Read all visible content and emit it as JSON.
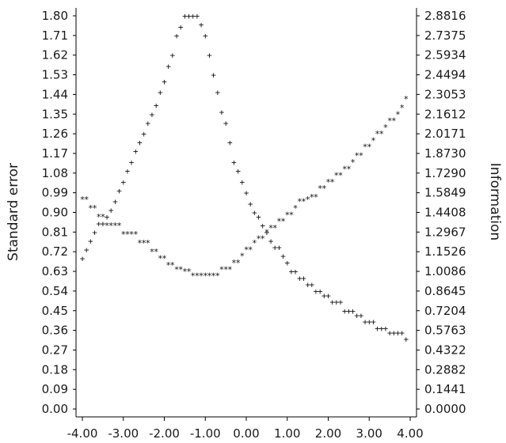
{
  "chart_data": {
    "type": "scatter",
    "xlabel": "",
    "ylabel": "Standard error",
    "y2label": "Information",
    "xlim": [
      -4,
      4
    ],
    "ylim": [
      0,
      1.8
    ],
    "y2lim": [
      0,
      2.8816
    ],
    "grid": false,
    "x_ticks": [
      "-4.00",
      "-3.00",
      "-2.00",
      "-1.00",
      "0.00",
      "1.00",
      "2.00",
      "3.00",
      "4.00"
    ],
    "y_ticks": [
      "0.00",
      "0.09",
      "0.18",
      "0.27",
      "0.36",
      "0.45",
      "0.54",
      "0.63",
      "0.72",
      "0.81",
      "0.90",
      "0.99",
      "1.08",
      "1.17",
      "1.26",
      "1.35",
      "1.44",
      "1.53",
      "1.62",
      "1.71",
      "1.80"
    ],
    "y2_ticks": [
      "0.0000",
      "0.1441",
      "0.2882",
      "0.4322",
      "0.5763",
      "0.7204",
      "0.8645",
      "1.0086",
      "1.1526",
      "1.2967",
      "1.4408",
      "1.5849",
      "1.7290",
      "1.8730",
      "2.0171",
      "2.1612",
      "2.3053",
      "2.4494",
      "2.5934",
      "2.7375",
      "2.8816"
    ],
    "series": [
      {
        "marker": "+",
        "axis": "left",
        "x": [
          -4.0,
          -3.9,
          -3.8,
          -3.7,
          -3.6,
          -3.5,
          -3.4,
          -3.3,
          -3.2,
          -3.1,
          -3.0,
          -2.9,
          -2.8,
          -2.7,
          -2.6,
          -2.5,
          -2.4,
          -2.3,
          -2.2,
          -2.1,
          -2.0,
          -1.9,
          -1.8,
          -1.7,
          -1.6,
          -1.5,
          -1.4,
          -1.3,
          -1.2,
          -1.1,
          -1.0,
          -0.9,
          -0.8,
          -0.7,
          -0.6,
          -0.5,
          -0.4,
          -0.3,
          -0.2,
          -0.1,
          0.0,
          0.1,
          0.2,
          0.3,
          0.4,
          0.5,
          0.6,
          0.7,
          0.8,
          0.9,
          1.0,
          1.1,
          1.2,
          1.3,
          1.4,
          1.5,
          1.6,
          1.7,
          1.8,
          1.9,
          2.0,
          2.1,
          2.2,
          2.3,
          2.4,
          2.5,
          2.6,
          2.7,
          2.8,
          2.9,
          3.0,
          3.1,
          3.2,
          3.3,
          3.4,
          3.5,
          3.6,
          3.7,
          3.8,
          3.9
        ],
        "y": [
          0.69,
          0.73,
          0.77,
          0.81,
          0.85,
          0.85,
          0.88,
          0.91,
          0.95,
          1.0,
          1.04,
          1.09,
          1.13,
          1.18,
          1.22,
          1.26,
          1.31,
          1.35,
          1.39,
          1.45,
          1.5,
          1.57,
          1.62,
          1.71,
          1.75,
          1.8,
          1.8,
          1.8,
          1.8,
          1.76,
          1.71,
          1.62,
          1.53,
          1.45,
          1.36,
          1.31,
          1.22,
          1.13,
          1.09,
          1.04,
          0.99,
          0.94,
          0.9,
          0.88,
          0.84,
          0.81,
          0.77,
          0.74,
          0.74,
          0.7,
          0.67,
          0.63,
          0.63,
          0.6,
          0.6,
          0.57,
          0.57,
          0.54,
          0.54,
          0.52,
          0.52,
          0.49,
          0.49,
          0.49,
          0.45,
          0.45,
          0.45,
          0.43,
          0.43,
          0.4,
          0.4,
          0.4,
          0.37,
          0.37,
          0.37,
          0.35,
          0.35,
          0.35,
          0.35,
          0.32
        ]
      },
      {
        "marker": "*",
        "axis": "left",
        "x": [
          -4.0,
          -3.9,
          -3.8,
          -3.7,
          -3.6,
          -3.5,
          -3.4,
          -3.3,
          -3.2,
          -3.1,
          -3.0,
          -2.9,
          -2.8,
          -2.7,
          -2.6,
          -2.5,
          -2.4,
          -2.3,
          -2.2,
          -2.1,
          -2.0,
          -1.9,
          -1.8,
          -1.7,
          -1.6,
          -1.5,
          -1.4,
          -1.3,
          -1.2,
          -1.1,
          -1.0,
          -0.9,
          -0.8,
          -0.7,
          -0.6,
          -0.5,
          -0.4,
          -0.3,
          -0.2,
          -0.1,
          0.0,
          0.1,
          0.2,
          0.3,
          0.4,
          0.5,
          0.6,
          0.7,
          0.8,
          0.9,
          1.0,
          1.1,
          1.2,
          1.3,
          1.4,
          1.5,
          1.6,
          1.7,
          1.8,
          1.9,
          2.0,
          2.1,
          2.2,
          2.3,
          2.4,
          2.5,
          2.6,
          2.7,
          2.8,
          2.9,
          3.0,
          3.1,
          3.2,
          3.3,
          3.4,
          3.5,
          3.6,
          3.7,
          3.8,
          3.9
        ],
        "y": [
          0.96,
          0.96,
          0.92,
          0.92,
          0.88,
          0.88,
          0.84,
          0.84,
          0.84,
          0.84,
          0.8,
          0.8,
          0.8,
          0.8,
          0.76,
          0.76,
          0.76,
          0.72,
          0.72,
          0.69,
          0.69,
          0.66,
          0.66,
          0.64,
          0.64,
          0.63,
          0.63,
          0.61,
          0.61,
          0.61,
          0.61,
          0.61,
          0.61,
          0.61,
          0.64,
          0.64,
          0.64,
          0.67,
          0.67,
          0.7,
          0.73,
          0.73,
          0.76,
          0.78,
          0.78,
          0.81,
          0.83,
          0.83,
          0.86,
          0.86,
          0.89,
          0.89,
          0.92,
          0.95,
          0.95,
          0.96,
          0.97,
          0.97,
          1.01,
          1.01,
          1.04,
          1.04,
          1.07,
          1.07,
          1.1,
          1.1,
          1.13,
          1.16,
          1.16,
          1.2,
          1.2,
          1.23,
          1.26,
          1.26,
          1.29,
          1.32,
          1.32,
          1.35,
          1.38,
          1.42
        ]
      }
    ]
  }
}
